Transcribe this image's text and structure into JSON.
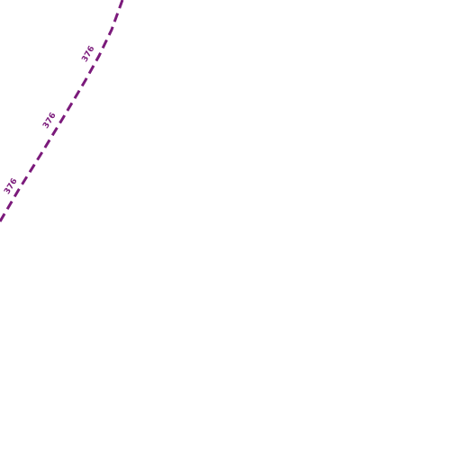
{
  "route": {
    "label": "376"
  }
}
